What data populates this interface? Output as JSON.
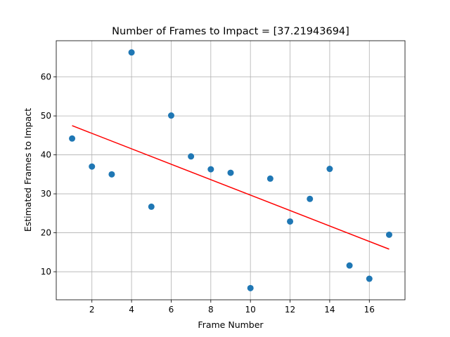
{
  "chart_data": {
    "type": "scatter",
    "title": "Number of Frames to Impact = [37.21943694]",
    "xlabel": "Frame Number",
    "ylabel": "Estimated Frames to Impact",
    "xlim": [
      0.2,
      17.8
    ],
    "ylim": [
      2.8,
      69.3
    ],
    "xticks": [
      2,
      4,
      6,
      8,
      10,
      12,
      14,
      16
    ],
    "yticks": [
      10,
      20,
      30,
      40,
      50,
      60
    ],
    "grid": true,
    "series": [
      {
        "type": "scatter",
        "color": "#1f77b4",
        "points": [
          {
            "x": 1,
            "y": 44.2
          },
          {
            "x": 2,
            "y": 37.0
          },
          {
            "x": 3,
            "y": 35.0
          },
          {
            "x": 4,
            "y": 66.3
          },
          {
            "x": 5,
            "y": 26.7
          },
          {
            "x": 6,
            "y": 50.1
          },
          {
            "x": 7,
            "y": 39.6
          },
          {
            "x": 8,
            "y": 36.3
          },
          {
            "x": 9,
            "y": 35.4
          },
          {
            "x": 10,
            "y": 5.8
          },
          {
            "x": 11,
            "y": 33.9
          },
          {
            "x": 12,
            "y": 22.9
          },
          {
            "x": 13,
            "y": 28.7
          },
          {
            "x": 14,
            "y": 36.4
          },
          {
            "x": 15,
            "y": 11.6
          },
          {
            "x": 16,
            "y": 8.2
          },
          {
            "x": 17,
            "y": 19.5
          }
        ]
      },
      {
        "type": "line",
        "color": "#ff0000",
        "points": [
          {
            "x": 1,
            "y": 47.5
          },
          {
            "x": 17,
            "y": 15.8
          }
        ]
      }
    ]
  }
}
